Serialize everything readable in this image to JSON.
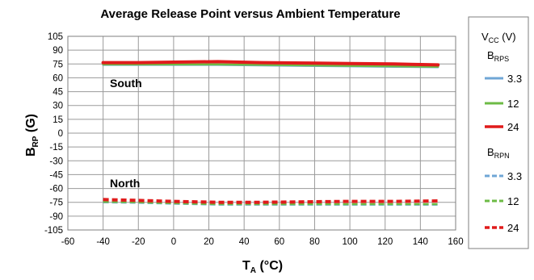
{
  "chart_data": {
    "type": "line",
    "title": "Average Release Point versus Ambient Temperature",
    "xlabel": {
      "main": "T",
      "sub": "A",
      "rest": " (°C)"
    },
    "ylabel": {
      "main": "B",
      "sub": "RP",
      "rest": " (G)"
    },
    "xlim": [
      -60,
      160
    ],
    "ylim": [
      -105,
      105
    ],
    "xticks": [
      -60,
      -40,
      -20,
      0,
      20,
      40,
      60,
      80,
      100,
      120,
      140,
      160
    ],
    "yticks": [
      105,
      90,
      75,
      60,
      45,
      30,
      15,
      0,
      -15,
      -30,
      -45,
      -60,
      -75,
      -90,
      -105
    ],
    "grid": true,
    "x": [
      -40,
      -20,
      0,
      25,
      50,
      75,
      100,
      125,
      150
    ],
    "annotations": {
      "south": "South",
      "north": "North"
    },
    "legend": {
      "placement": "right",
      "title": {
        "main": "V",
        "sub": "CC",
        "rest": " (V)"
      },
      "group1": {
        "main": "B",
        "sub": "RPS"
      },
      "group2": {
        "main": "B",
        "sub": "RPN"
      },
      "entries": [
        {
          "name": "3.3",
          "color": "#6fa6d6",
          "dash": false
        },
        {
          "name": "12",
          "color": "#6dbb45",
          "dash": false
        },
        {
          "name": "24",
          "color": "#e01b1b",
          "dash": false
        },
        {
          "name": "3.3",
          "color": "#6fa6d6",
          "dash": true
        },
        {
          "name": "12",
          "color": "#6dbb45",
          "dash": true
        },
        {
          "name": "24",
          "color": "#e01b1b",
          "dash": true
        }
      ]
    },
    "series": [
      {
        "name": "3.3",
        "group": "B_RPS",
        "color": "#6fa6d6",
        "dash": false,
        "values": [
          74,
          74,
          74,
          74,
          73.5,
          73,
          72.5,
          72,
          71.5
        ]
      },
      {
        "name": "12",
        "group": "B_RPS",
        "color": "#6dbb45",
        "dash": false,
        "values": [
          74.5,
          74.5,
          74.5,
          74.5,
          74,
          73.5,
          73,
          72.5,
          72
        ]
      },
      {
        "name": "24",
        "group": "B_RPS",
        "color": "#e01b1b",
        "dash": false,
        "values": [
          76.5,
          76.5,
          77,
          77.5,
          76.5,
          76,
          75.5,
          75,
          74
        ]
      },
      {
        "name": "3.3",
        "group": "B_RPN",
        "color": "#6fa6d6",
        "dash": true,
        "values": [
          -75,
          -75.5,
          -76.5,
          -77.5,
          -77.5,
          -77.5,
          -77.5,
          -77.5,
          -77.5
        ]
      },
      {
        "name": "12",
        "group": "B_RPN",
        "color": "#6dbb45",
        "dash": true,
        "values": [
          -74.5,
          -75,
          -76,
          -77,
          -77,
          -77,
          -77,
          -77,
          -77
        ]
      },
      {
        "name": "24",
        "group": "B_RPN",
        "color": "#e01b1b",
        "dash": true,
        "values": [
          -72,
          -73,
          -74,
          -75,
          -75,
          -74.5,
          -74,
          -74,
          -73.5
        ]
      }
    ]
  }
}
